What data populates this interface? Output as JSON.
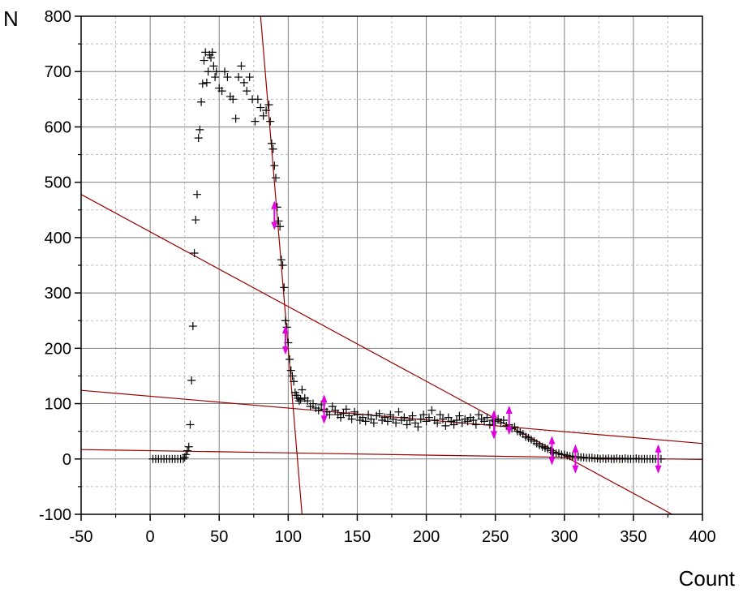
{
  "chart_data": {
    "type": "scatter",
    "xlabel": "Count",
    "ylabel": "N",
    "xlim": [
      -50,
      400
    ],
    "ylim": [
      -100,
      800
    ],
    "x_ticks": [
      -50,
      0,
      50,
      100,
      150,
      200,
      250,
      300,
      350,
      400
    ],
    "y_ticks": [
      -100,
      0,
      100,
      200,
      300,
      400,
      500,
      600,
      700,
      800
    ],
    "x_tick_labels": [
      "-50",
      "0",
      "50",
      "100",
      "150",
      "200",
      "250",
      "300",
      "350",
      "400"
    ],
    "y_tick_labels": [
      "-100",
      "0",
      "100",
      "200",
      "300",
      "400",
      "500",
      "600",
      "700",
      "800"
    ],
    "grid": true,
    "marker": "plus",
    "colors": {
      "points": "#000000",
      "fit_lines": "#990000",
      "range_markers": "#e000e0",
      "grid_major": "#808080",
      "grid_minor": "#bfbfbf"
    },
    "points": [
      [
        2,
        0
      ],
      [
        4,
        0
      ],
      [
        6,
        0
      ],
      [
        8,
        0
      ],
      [
        10,
        0
      ],
      [
        12,
        0
      ],
      [
        14,
        0
      ],
      [
        16,
        0
      ],
      [
        18,
        0
      ],
      [
        20,
        0
      ],
      [
        22,
        0
      ],
      [
        24,
        0
      ],
      [
        25,
        3
      ],
      [
        26,
        8
      ],
      [
        27,
        15
      ],
      [
        28,
        22
      ],
      [
        29,
        62
      ],
      [
        30,
        142
      ],
      [
        31,
        240
      ],
      [
        32,
        372
      ],
      [
        33,
        432
      ],
      [
        34,
        478
      ],
      [
        35,
        580
      ],
      [
        36,
        595
      ],
      [
        37,
        645
      ],
      [
        38,
        678
      ],
      [
        39,
        720
      ],
      [
        40,
        735
      ],
      [
        41,
        680
      ],
      [
        42,
        700
      ],
      [
        43,
        730
      ],
      [
        44,
        725
      ],
      [
        45,
        735
      ],
      [
        46,
        710
      ],
      [
        47,
        690
      ],
      [
        48,
        700
      ],
      [
        50,
        670
      ],
      [
        52,
        665
      ],
      [
        54,
        700
      ],
      [
        56,
        690
      ],
      [
        58,
        655
      ],
      [
        60,
        650
      ],
      [
        62,
        615
      ],
      [
        64,
        690
      ],
      [
        66,
        710
      ],
      [
        68,
        680
      ],
      [
        70,
        665
      ],
      [
        72,
        690
      ],
      [
        74,
        650
      ],
      [
        76,
        610
      ],
      [
        78,
        650
      ],
      [
        80,
        635
      ],
      [
        82,
        620
      ],
      [
        84,
        630
      ],
      [
        86,
        640
      ],
      [
        87,
        610
      ],
      [
        88,
        570
      ],
      [
        89,
        560
      ],
      [
        90,
        530
      ],
      [
        91,
        508
      ],
      [
        92,
        455
      ],
      [
        93,
        430
      ],
      [
        94,
        420
      ],
      [
        95,
        360
      ],
      [
        96,
        350
      ],
      [
        97,
        310
      ],
      [
        98,
        250
      ],
      [
        99,
        238
      ],
      [
        100,
        210
      ],
      [
        101,
        180
      ],
      [
        102,
        160
      ],
      [
        103,
        150
      ],
      [
        104,
        140
      ],
      [
        105,
        120
      ],
      [
        106,
        115
      ],
      [
        107,
        110
      ],
      [
        108,
        105
      ],
      [
        109,
        108
      ],
      [
        110,
        125
      ],
      [
        112,
        110
      ],
      [
        114,
        105
      ],
      [
        116,
        95
      ],
      [
        118,
        100
      ],
      [
        120,
        92
      ],
      [
        122,
        88
      ],
      [
        124,
        98
      ],
      [
        126,
        90
      ],
      [
        128,
        85
      ],
      [
        130,
        80
      ],
      [
        132,
        95
      ],
      [
        134,
        88
      ],
      [
        136,
        80
      ],
      [
        138,
        75
      ],
      [
        140,
        82
      ],
      [
        142,
        90
      ],
      [
        144,
        78
      ],
      [
        146,
        72
      ],
      [
        148,
        85
      ],
      [
        150,
        80
      ],
      [
        152,
        70
      ],
      [
        154,
        75
      ],
      [
        156,
        68
      ],
      [
        158,
        80
      ],
      [
        160,
        72
      ],
      [
        162,
        65
      ],
      [
        164,
        78
      ],
      [
        166,
        82
      ],
      [
        168,
        70
      ],
      [
        170,
        75
      ],
      [
        172,
        68
      ],
      [
        174,
        80
      ],
      [
        176,
        72
      ],
      [
        178,
        65
      ],
      [
        180,
        85
      ],
      [
        182,
        70
      ],
      [
        184,
        75
      ],
      [
        186,
        62
      ],
      [
        188,
        70
      ],
      [
        190,
        78
      ],
      [
        192,
        65
      ],
      [
        194,
        58
      ],
      [
        196,
        72
      ],
      [
        198,
        80
      ],
      [
        200,
        68
      ],
      [
        202,
        75
      ],
      [
        204,
        88
      ],
      [
        206,
        70
      ],
      [
        208,
        65
      ],
      [
        210,
        80
      ],
      [
        212,
        72
      ],
      [
        214,
        60
      ],
      [
        216,
        75
      ],
      [
        218,
        68
      ],
      [
        220,
        62
      ],
      [
        222,
        70
      ],
      [
        224,
        78
      ],
      [
        226,
        65
      ],
      [
        228,
        72
      ],
      [
        230,
        68
      ],
      [
        232,
        75
      ],
      [
        234,
        70
      ],
      [
        236,
        62
      ],
      [
        238,
        80
      ],
      [
        240,
        72
      ],
      [
        242,
        68
      ],
      [
        244,
        75
      ],
      [
        246,
        62
      ],
      [
        248,
        70
      ],
      [
        250,
        68
      ],
      [
        252,
        72
      ],
      [
        254,
        65
      ],
      [
        256,
        70
      ],
      [
        258,
        60
      ],
      [
        260,
        62
      ],
      [
        262,
        55
      ],
      [
        264,
        58
      ],
      [
        266,
        50
      ],
      [
        268,
        48
      ],
      [
        270,
        45
      ],
      [
        272,
        40
      ],
      [
        274,
        38
      ],
      [
        276,
        35
      ],
      [
        278,
        32
      ],
      [
        280,
        28
      ],
      [
        282,
        25
      ],
      [
        284,
        22
      ],
      [
        286,
        20
      ],
      [
        288,
        18
      ],
      [
        290,
        15
      ],
      [
        292,
        12
      ],
      [
        294,
        10
      ],
      [
        296,
        10
      ],
      [
        298,
        8
      ],
      [
        300,
        8
      ],
      [
        302,
        6
      ],
      [
        304,
        5
      ],
      [
        306,
        5
      ],
      [
        308,
        4
      ],
      [
        310,
        4
      ],
      [
        312,
        3
      ],
      [
        314,
        3
      ],
      [
        316,
        2
      ],
      [
        318,
        2
      ],
      [
        320,
        2
      ],
      [
        322,
        1
      ],
      [
        324,
        1
      ],
      [
        326,
        0
      ],
      [
        328,
        1
      ],
      [
        330,
        0
      ],
      [
        332,
        1
      ],
      [
        334,
        0
      ],
      [
        336,
        0
      ],
      [
        338,
        1
      ],
      [
        340,
        0
      ],
      [
        342,
        0
      ],
      [
        344,
        1
      ],
      [
        346,
        0
      ],
      [
        348,
        0
      ],
      [
        350,
        0
      ],
      [
        352,
        1
      ],
      [
        354,
        0
      ],
      [
        356,
        0
      ],
      [
        358,
        0
      ],
      [
        360,
        0
      ],
      [
        362,
        0
      ],
      [
        364,
        0
      ],
      [
        366,
        0
      ],
      [
        368,
        0
      ],
      [
        370,
        0
      ]
    ],
    "fit_lines": [
      {
        "p1": [
          80,
          800
        ],
        "p2": [
          110,
          -100
        ]
      },
      {
        "p1": [
          -50,
          478
        ],
        "p2": [
          378,
          -100
        ]
      },
      {
        "p1": [
          -50,
          124
        ],
        "p2": [
          400,
          28
        ]
      },
      {
        "p1": [
          -50,
          17
        ],
        "p2": [
          400,
          -1
        ]
      }
    ],
    "range_markers": [
      {
        "x": 90,
        "y": 440
      },
      {
        "x": 98,
        "y": 215
      },
      {
        "x": 126,
        "y": 90
      },
      {
        "x": 249,
        "y": 62
      },
      {
        "x": 260,
        "y": 70
      },
      {
        "x": 291,
        "y": 15
      },
      {
        "x": 308,
        "y": 0
      },
      {
        "x": 368,
        "y": 0
      }
    ]
  }
}
